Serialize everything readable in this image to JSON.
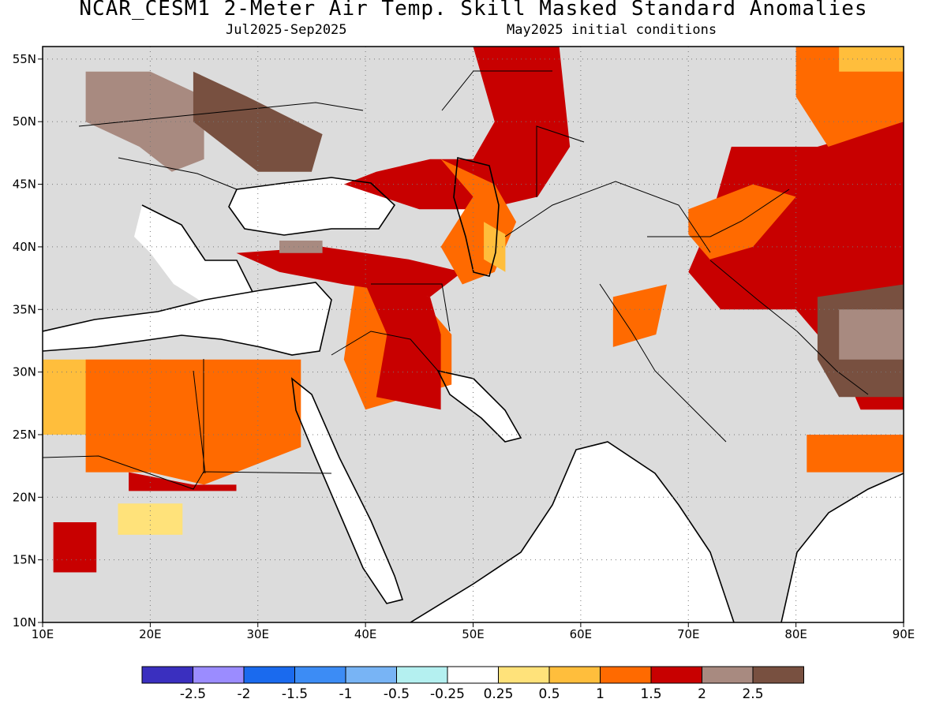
{
  "header": {
    "title": "NCAR_CESM1 2-Meter Air Temp. Skill Masked Standard Anomalies",
    "period": "Jul2025-Sep2025",
    "init": "May2025 initial conditions"
  },
  "map": {
    "lon_range": [
      10,
      90
    ],
    "lat_range": [
      10,
      56
    ],
    "lon_ticks": [
      10,
      20,
      30,
      40,
      50,
      60,
      70,
      80,
      90
    ],
    "lon_tick_labels": [
      "10E",
      "20E",
      "30E",
      "40E",
      "50E",
      "60E",
      "70E",
      "80E",
      "90E"
    ],
    "lat_ticks": [
      10,
      15,
      20,
      25,
      30,
      35,
      40,
      45,
      50,
      55
    ],
    "lat_tick_labels": [
      "10N",
      "15N",
      "20N",
      "25N",
      "30N",
      "35N",
      "40N",
      "45N",
      "50N",
      "55N"
    ],
    "gridlines": "dotted",
    "colors": {
      "masked": "#dcdcdc",
      "water_and_near_zero": "#ffffff",
      "coast": "#000000"
    },
    "anomaly_regions": [
      {
        "level": 0.5,
        "color": "#ffbe3c",
        "points": [
          [
            10,
            31
          ],
          [
            21,
            31
          ],
          [
            21,
            25
          ],
          [
            10,
            25
          ]
        ]
      },
      {
        "level": 1.0,
        "color": "#ff6a00",
        "points": [
          [
            14,
            31
          ],
          [
            34,
            31
          ],
          [
            34,
            24
          ],
          [
            25,
            21
          ],
          [
            20,
            22
          ],
          [
            14,
            22
          ]
        ]
      },
      {
        "level": 0.25,
        "color": "#ffe27a",
        "points": [
          [
            17,
            19.5
          ],
          [
            23,
            19.5
          ],
          [
            23,
            17
          ],
          [
            17,
            17
          ]
        ]
      },
      {
        "level": 1.5,
        "color": "#c80000",
        "points": [
          [
            18,
            22
          ],
          [
            24,
            21
          ],
          [
            28,
            21
          ],
          [
            28,
            20.5
          ],
          [
            18,
            20.5
          ]
        ]
      },
      {
        "level": 1.0,
        "color": "#ff6a00",
        "points": [
          [
            39,
            37
          ],
          [
            45,
            36
          ],
          [
            48,
            33
          ],
          [
            48,
            29
          ],
          [
            40,
            27
          ],
          [
            38,
            31
          ]
        ]
      },
      {
        "level": 1.5,
        "color": "#c80000",
        "points": [
          [
            40,
            37
          ],
          [
            46,
            36
          ],
          [
            47,
            33
          ],
          [
            47,
            27
          ],
          [
            41,
            28
          ],
          [
            42,
            33
          ]
        ]
      },
      {
        "level": 1.5,
        "color": "#c80000",
        "points": [
          [
            28,
            39.5
          ],
          [
            36,
            40
          ],
          [
            44,
            39
          ],
          [
            49,
            38
          ],
          [
            46,
            36
          ],
          [
            38,
            37
          ],
          [
            32,
            38
          ]
        ]
      },
      {
        "level": 2.0,
        "color": "#a88a80",
        "points": [
          [
            32,
            40.5
          ],
          [
            36,
            40.5
          ],
          [
            36,
            39.5
          ],
          [
            32,
            39.5
          ]
        ]
      },
      {
        "level": 1.5,
        "color": "#c80000",
        "points": [
          [
            47,
            56
          ],
          [
            58,
            56
          ],
          [
            59,
            48
          ],
          [
            56,
            44
          ],
          [
            51,
            43
          ],
          [
            45,
            43
          ],
          [
            38,
            45
          ],
          [
            41,
            46
          ],
          [
            46,
            47
          ],
          [
            50,
            47
          ],
          [
            52,
            50
          ],
          [
            50,
            56
          ]
        ]
      },
      {
        "level": 1.0,
        "color": "#ff6a00",
        "points": [
          [
            47,
            47
          ],
          [
            52,
            45
          ],
          [
            54,
            42
          ],
          [
            52,
            38
          ],
          [
            49,
            37
          ],
          [
            47,
            40
          ],
          [
            50,
            44
          ]
        ]
      },
      {
        "level": 0.5,
        "color": "#ffbe3c",
        "points": [
          [
            51,
            42
          ],
          [
            53,
            41
          ],
          [
            53,
            38
          ],
          [
            51,
            39
          ]
        ]
      },
      {
        "level": 1.5,
        "color": "#c80000",
        "points": [
          [
            74,
            48
          ],
          [
            82,
            48
          ],
          [
            90,
            50
          ],
          [
            90,
            27
          ],
          [
            86,
            27
          ],
          [
            84,
            31
          ],
          [
            80,
            35
          ],
          [
            73,
            35
          ],
          [
            70,
            38
          ],
          [
            72,
            42
          ]
        ]
      },
      {
        "level": 1.0,
        "color": "#ff6a00",
        "points": [
          [
            80,
            56
          ],
          [
            90,
            56
          ],
          [
            90,
            50
          ],
          [
            83,
            48
          ],
          [
            80,
            52
          ]
        ]
      },
      {
        "level": 0.5,
        "color": "#ffbe3c",
        "points": [
          [
            84,
            56
          ],
          [
            90,
            56
          ],
          [
            90,
            54
          ],
          [
            84,
            54
          ]
        ]
      },
      {
        "level": 1.0,
        "color": "#ff6a00",
        "points": [
          [
            70,
            43
          ],
          [
            76,
            45
          ],
          [
            80,
            44
          ],
          [
            76,
            40
          ],
          [
            72,
            39
          ],
          [
            70,
            41
          ]
        ]
      },
      {
        "level": 1.0,
        "color": "#ff6a00",
        "points": [
          [
            63,
            36
          ],
          [
            68,
            37
          ],
          [
            67,
            33
          ],
          [
            63,
            32
          ]
        ]
      },
      {
        "level": 2.5,
        "color": "#785040",
        "points": [
          [
            82,
            36
          ],
          [
            90,
            37
          ],
          [
            90,
            28
          ],
          [
            84,
            28
          ],
          [
            82,
            31
          ]
        ]
      },
      {
        "level": 2.0,
        "color": "#a88a80",
        "points": [
          [
            84,
            35
          ],
          [
            90,
            35
          ],
          [
            90,
            31
          ],
          [
            84,
            31
          ]
        ]
      },
      {
        "level": 1.0,
        "color": "#ff6a00",
        "points": [
          [
            81,
            25
          ],
          [
            90,
            25
          ],
          [
            90,
            22
          ],
          [
            81,
            22
          ]
        ]
      },
      {
        "level": 2.0,
        "color": "#a88a80",
        "points": [
          [
            14,
            54
          ],
          [
            20,
            54
          ],
          [
            25,
            52
          ],
          [
            25,
            47
          ],
          [
            22,
            46
          ],
          [
            19,
            48
          ],
          [
            14,
            50
          ]
        ]
      },
      {
        "level": 2.5,
        "color": "#785040",
        "points": [
          [
            24,
            54
          ],
          [
            29,
            52
          ],
          [
            36,
            49
          ],
          [
            35,
            46
          ],
          [
            30,
            46
          ],
          [
            27,
            48
          ],
          [
            24,
            50
          ]
        ]
      },
      {
        "level": 1.5,
        "color": "#c80000",
        "points": [
          [
            11,
            18
          ],
          [
            15,
            18
          ],
          [
            15,
            14
          ],
          [
            11,
            14
          ]
        ]
      }
    ]
  },
  "colorbar": {
    "colors": [
      "#3a2fbf",
      "#9b8cff",
      "#1a6aee",
      "#3c8cf5",
      "#78b4f5",
      "#b4f0f0",
      "#ffffff",
      "#ffe27a",
      "#ffbe3c",
      "#ff6a00",
      "#c80000",
      "#a88a80",
      "#785040"
    ],
    "labels": [
      "-2.5",
      "-2",
      "-1.5",
      "-1",
      "-0.5",
      "-0.25",
      "0.25",
      "0.5",
      "1",
      "1.5",
      "2",
      "2.5"
    ]
  }
}
